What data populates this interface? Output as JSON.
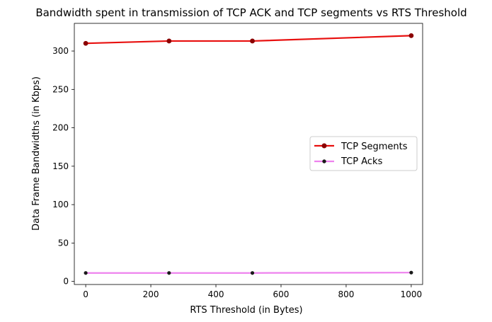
{
  "chart_data": {
    "type": "line",
    "title": "Bandwidth spent in transmission of TCP ACK and TCP segments vs RTS Threshold",
    "xlabel": "RTS Threshold (in Bytes)",
    "ylabel": "Data Frame Bandwidths (in Kbps)",
    "x": [
      0,
      256,
      512,
      1000
    ],
    "xlim": [
      -35,
      1035
    ],
    "ylim": [
      -4,
      336
    ],
    "xticks": [
      0,
      200,
      400,
      600,
      800,
      1000
    ],
    "yticks": [
      0,
      50,
      100,
      150,
      200,
      250,
      300
    ],
    "xtick_labels": [
      "0",
      "200",
      "400",
      "600",
      "800",
      "1000"
    ],
    "ytick_labels": [
      "0",
      "50",
      "100",
      "150",
      "200",
      "250",
      "300"
    ],
    "grid": false,
    "legend_position": "center-right",
    "series": [
      {
        "name": "TCP Segments",
        "values": [
          310,
          313,
          313,
          320
        ],
        "color": "#e8100f",
        "marker_color": "#8b0000"
      },
      {
        "name": "TCP Acks",
        "values": [
          11,
          11,
          11,
          11.5
        ],
        "color": "#ee82ee",
        "marker_color": "#1a1a1a"
      }
    ]
  }
}
